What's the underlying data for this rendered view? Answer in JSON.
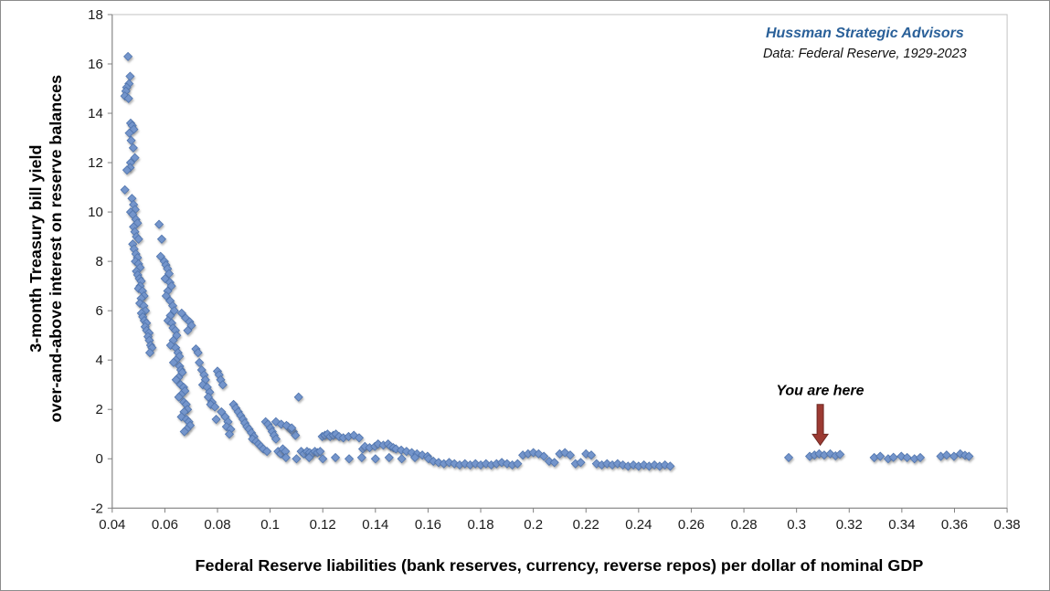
{
  "chart_data": {
    "type": "scatter",
    "title": "",
    "xlabel": "Federal Reserve liabilities (bank reserves, currency, reverse repos) per dollar of nominal GDP",
    "ylabel_line1": "3-month Treasury bill yield",
    "ylabel_line2": "over-and-above interest on reserve balances",
    "xlim": [
      0.04,
      0.38
    ],
    "ylim": [
      -2,
      18
    ],
    "x_tick_labels": [
      "0.04",
      "0.06",
      "0.08",
      "0.1",
      "0.12",
      "0.14",
      "0.16",
      "0.18",
      "0.2",
      "0.22",
      "0.24",
      "0.26",
      "0.28",
      "0.3",
      "0.32",
      "0.34",
      "0.36",
      "0.38"
    ],
    "y_ticks": [
      -2,
      0,
      2,
      4,
      6,
      8,
      10,
      12,
      14,
      16,
      18
    ],
    "grid": false,
    "legend": false,
    "marker": {
      "shape": "diamond",
      "color": "#7495CB",
      "edge": "#4F74AE",
      "size": 9
    },
    "annotation": {
      "text": "You are here",
      "x": 0.309,
      "label_y": 2.9,
      "arrow_from_y": 2.2,
      "arrow_to_y": 0.55,
      "arrow_color": "#9C3A32"
    },
    "source": {
      "line1": "Hussman Strategic Advisors",
      "line2": "Data: Federal Reserve, 1929-2023",
      "line1_color": "#2A6099"
    },
    "points": [
      [
        0.046,
        16.3
      ],
      [
        0.0468,
        15.5
      ],
      [
        0.0464,
        15.2
      ],
      [
        0.0455,
        15.05
      ],
      [
        0.0452,
        14.9
      ],
      [
        0.0448,
        14.7
      ],
      [
        0.0462,
        14.6
      ],
      [
        0.047,
        13.6
      ],
      [
        0.0476,
        13.5
      ],
      [
        0.0482,
        13.35
      ],
      [
        0.0465,
        13.2
      ],
      [
        0.0472,
        12.9
      ],
      [
        0.048,
        12.6
      ],
      [
        0.0486,
        12.2
      ],
      [
        0.047,
        12.0
      ],
      [
        0.0468,
        11.8
      ],
      [
        0.0456,
        11.7
      ],
      [
        0.0448,
        10.9
      ],
      [
        0.0475,
        10.55
      ],
      [
        0.0481,
        10.3
      ],
      [
        0.0487,
        10.1
      ],
      [
        0.047,
        10.0
      ],
      [
        0.0478,
        9.9
      ],
      [
        0.049,
        9.7
      ],
      [
        0.0496,
        9.55
      ],
      [
        0.0481,
        9.4
      ],
      [
        0.0486,
        9.2
      ],
      [
        0.0492,
        9.0
      ],
      [
        0.05,
        8.9
      ],
      [
        0.0478,
        8.7
      ],
      [
        0.0483,
        8.5
      ],
      [
        0.049,
        8.3
      ],
      [
        0.0496,
        8.15
      ],
      [
        0.0488,
        8.0
      ],
      [
        0.05,
        7.9
      ],
      [
        0.0506,
        7.75
      ],
      [
        0.0492,
        7.6
      ],
      [
        0.0497,
        7.45
      ],
      [
        0.0503,
        7.3
      ],
      [
        0.051,
        7.2
      ],
      [
        0.0506,
        7.0
      ],
      [
        0.05,
        6.9
      ],
      [
        0.0515,
        6.8
      ],
      [
        0.0521,
        6.6
      ],
      [
        0.051,
        6.5
      ],
      [
        0.0505,
        6.3
      ],
      [
        0.052,
        6.2
      ],
      [
        0.0526,
        6.0
      ],
      [
        0.0511,
        5.9
      ],
      [
        0.0516,
        5.75
      ],
      [
        0.0522,
        5.6
      ],
      [
        0.053,
        5.5
      ],
      [
        0.0525,
        5.35
      ],
      [
        0.0531,
        5.2
      ],
      [
        0.054,
        5.1
      ],
      [
        0.0536,
        4.95
      ],
      [
        0.0541,
        4.8
      ],
      [
        0.0546,
        4.6
      ],
      [
        0.0551,
        4.5
      ],
      [
        0.0543,
        4.3
      ],
      [
        0.0578,
        9.5
      ],
      [
        0.0588,
        8.9
      ],
      [
        0.0584,
        8.2
      ],
      [
        0.0598,
        8.0
      ],
      [
        0.0604,
        7.85
      ],
      [
        0.061,
        7.7
      ],
      [
        0.0616,
        7.5
      ],
      [
        0.0601,
        7.3
      ],
      [
        0.0619,
        7.15
      ],
      [
        0.0625,
        7.0
      ],
      [
        0.0611,
        6.8
      ],
      [
        0.0605,
        6.6
      ],
      [
        0.062,
        6.4
      ],
      [
        0.063,
        6.2
      ],
      [
        0.0636,
        6.0
      ],
      [
        0.0621,
        5.8
      ],
      [
        0.0612,
        5.6
      ],
      [
        0.0626,
        5.5
      ],
      [
        0.0631,
        5.3
      ],
      [
        0.064,
        5.2
      ],
      [
        0.0645,
        5.0
      ],
      [
        0.0632,
        4.8
      ],
      [
        0.0622,
        4.6
      ],
      [
        0.0641,
        4.5
      ],
      [
        0.065,
        4.3
      ],
      [
        0.0655,
        4.15
      ],
      [
        0.0642,
        4.0
      ],
      [
        0.0633,
        3.9
      ],
      [
        0.0656,
        3.75
      ],
      [
        0.0661,
        3.6
      ],
      [
        0.0666,
        3.5
      ],
      [
        0.0652,
        3.3
      ],
      [
        0.0643,
        3.2
      ],
      [
        0.066,
        3.0
      ],
      [
        0.0671,
        2.9
      ],
      [
        0.0676,
        2.75
      ],
      [
        0.0662,
        2.6
      ],
      [
        0.0653,
        2.5
      ],
      [
        0.0672,
        2.3
      ],
      [
        0.0681,
        2.2
      ],
      [
        0.0686,
        2.0
      ],
      [
        0.0673,
        1.9
      ],
      [
        0.0663,
        1.7
      ],
      [
        0.0682,
        1.6
      ],
      [
        0.0691,
        1.5
      ],
      [
        0.0696,
        1.35
      ],
      [
        0.0683,
        1.2
      ],
      [
        0.0674,
        1.1
      ],
      [
        0.0664,
        5.9
      ],
      [
        0.0679,
        5.7
      ],
      [
        0.0694,
        5.55
      ],
      [
        0.0701,
        5.4
      ],
      [
        0.0687,
        5.2
      ],
      [
        0.0718,
        4.45
      ],
      [
        0.0726,
        4.3
      ],
      [
        0.0731,
        3.9
      ],
      [
        0.074,
        3.6
      ],
      [
        0.0749,
        3.4
      ],
      [
        0.0754,
        3.2
      ],
      [
        0.0744,
        3.0
      ],
      [
        0.0761,
        2.9
      ],
      [
        0.077,
        2.7
      ],
      [
        0.0765,
        2.5
      ],
      [
        0.0779,
        2.3
      ],
      [
        0.0774,
        2.2
      ],
      [
        0.079,
        2.1
      ],
      [
        0.08,
        3.55
      ],
      [
        0.0806,
        3.4
      ],
      [
        0.0812,
        3.2
      ],
      [
        0.082,
        3.0
      ],
      [
        0.0815,
        1.9
      ],
      [
        0.0829,
        1.7
      ],
      [
        0.084,
        1.5
      ],
      [
        0.0834,
        1.3
      ],
      [
        0.085,
        1.2
      ],
      [
        0.0845,
        1.0
      ],
      [
        0.0795,
        1.6
      ],
      [
        0.0861,
        2.2
      ],
      [
        0.087,
        2.05
      ],
      [
        0.0879,
        1.9
      ],
      [
        0.0888,
        1.75
      ],
      [
        0.0897,
        1.6
      ],
      [
        0.0904,
        1.45
      ],
      [
        0.0912,
        1.3
      ],
      [
        0.092,
        1.2
      ],
      [
        0.0929,
        1.05
      ],
      [
        0.0938,
        0.9
      ],
      [
        0.0933,
        0.8
      ],
      [
        0.0947,
        0.7
      ],
      [
        0.0956,
        0.6
      ],
      [
        0.0965,
        0.5
      ],
      [
        0.0974,
        0.4
      ],
      [
        0.0988,
        0.3
      ],
      [
        0.0983,
        1.5
      ],
      [
        0.0992,
        1.4
      ],
      [
        0.1001,
        1.25
      ],
      [
        0.1008,
        1.1
      ],
      [
        0.1015,
        0.95
      ],
      [
        0.1022,
        0.8
      ],
      [
        0.103,
        0.3
      ],
      [
        0.104,
        0.2
      ],
      [
        0.1048,
        0.4
      ],
      [
        0.1058,
        0.3
      ],
      [
        0.1068,
        1.3
      ],
      [
        0.1077,
        1.2
      ],
      [
        0.1088,
        1.1
      ],
      [
        0.1096,
        0.95
      ],
      [
        0.1108,
        2.5
      ],
      [
        0.1118,
        0.3
      ],
      [
        0.1128,
        0.2
      ],
      [
        0.114,
        0.3
      ],
      [
        0.115,
        0.25
      ],
      [
        0.116,
        0.2
      ],
      [
        0.117,
        0.3
      ],
      [
        0.118,
        0.25
      ],
      [
        0.119,
        0.3
      ],
      [
        0.1198,
        0.9
      ],
      [
        0.1022,
        1.5
      ],
      [
        0.1042,
        1.4
      ],
      [
        0.1062,
        1.35
      ],
      [
        0.1082,
        1.25
      ],
      [
        0.1208,
        0.95
      ],
      [
        0.1218,
        1.0
      ],
      [
        0.1228,
        0.9
      ],
      [
        0.124,
        0.95
      ],
      [
        0.125,
        1.0
      ],
      [
        0.1262,
        0.9
      ],
      [
        0.1278,
        0.85
      ],
      [
        0.1298,
        0.9
      ],
      [
        0.1318,
        0.95
      ],
      [
        0.1338,
        0.85
      ],
      [
        0.1352,
        0.4
      ],
      [
        0.136,
        0.5
      ],
      [
        0.1378,
        0.45
      ],
      [
        0.1398,
        0.5
      ],
      [
        0.141,
        0.6
      ],
      [
        0.143,
        0.55
      ],
      [
        0.1448,
        0.6
      ],
      [
        0.1458,
        0.5
      ],
      [
        0.1468,
        0.45
      ],
      [
        0.1478,
        0.4
      ],
      [
        0.1498,
        0.35
      ],
      [
        0.1518,
        0.3
      ],
      [
        0.1538,
        0.25
      ],
      [
        0.1558,
        0.2
      ],
      [
        0.1578,
        0.15
      ],
      [
        0.1598,
        0.1
      ],
      [
        0.106,
        0.05
      ],
      [
        0.11,
        0.0
      ],
      [
        0.1148,
        0.05
      ],
      [
        0.12,
        0.0
      ],
      [
        0.1248,
        0.05
      ],
      [
        0.13,
        0.0
      ],
      [
        0.1348,
        0.05
      ],
      [
        0.14,
        0.0
      ],
      [
        0.1452,
        0.05
      ],
      [
        0.15,
        0.0
      ],
      [
        0.155,
        0.05
      ],
      [
        0.1602,
        0.0
      ],
      [
        0.162,
        -0.1
      ],
      [
        0.164,
        -0.15
      ],
      [
        0.166,
        -0.2
      ],
      [
        0.168,
        -0.15
      ],
      [
        0.17,
        -0.2
      ],
      [
        0.172,
        -0.25
      ],
      [
        0.174,
        -0.2
      ],
      [
        0.176,
        -0.25
      ],
      [
        0.178,
        -0.2
      ],
      [
        0.18,
        -0.25
      ],
      [
        0.182,
        -0.2
      ],
      [
        0.184,
        -0.25
      ],
      [
        0.186,
        -0.2
      ],
      [
        0.188,
        -0.15
      ],
      [
        0.19,
        -0.2
      ],
      [
        0.192,
        -0.25
      ],
      [
        0.194,
        -0.2
      ],
      [
        0.196,
        0.15
      ],
      [
        0.198,
        0.2
      ],
      [
        0.2,
        0.25
      ],
      [
        0.202,
        0.2
      ],
      [
        0.204,
        0.1
      ],
      [
        0.206,
        -0.1
      ],
      [
        0.208,
        -0.15
      ],
      [
        0.21,
        0.2
      ],
      [
        0.212,
        0.25
      ],
      [
        0.214,
        0.15
      ],
      [
        0.216,
        -0.2
      ],
      [
        0.218,
        -0.15
      ],
      [
        0.22,
        0.2
      ],
      [
        0.222,
        0.15
      ],
      [
        0.224,
        -0.2
      ],
      [
        0.226,
        -0.25
      ],
      [
        0.228,
        -0.2
      ],
      [
        0.23,
        -0.25
      ],
      [
        0.232,
        -0.2
      ],
      [
        0.234,
        -0.25
      ],
      [
        0.236,
        -0.3
      ],
      [
        0.238,
        -0.25
      ],
      [
        0.24,
        -0.3
      ],
      [
        0.242,
        -0.25
      ],
      [
        0.244,
        -0.3
      ],
      [
        0.246,
        -0.25
      ],
      [
        0.248,
        -0.3
      ],
      [
        0.25,
        -0.25
      ],
      [
        0.252,
        -0.3
      ],
      [
        0.297,
        0.05
      ],
      [
        0.305,
        0.1
      ],
      [
        0.3068,
        0.15
      ],
      [
        0.3086,
        0.2
      ],
      [
        0.3105,
        0.15
      ],
      [
        0.3128,
        0.2
      ],
      [
        0.3148,
        0.12
      ],
      [
        0.3165,
        0.18
      ],
      [
        0.3295,
        0.05
      ],
      [
        0.3318,
        0.1
      ],
      [
        0.3348,
        0.0
      ],
      [
        0.3368,
        0.06
      ],
      [
        0.3398,
        0.1
      ],
      [
        0.342,
        0.05
      ],
      [
        0.3448,
        0.0
      ],
      [
        0.347,
        0.05
      ],
      [
        0.3548,
        0.1
      ],
      [
        0.357,
        0.15
      ],
      [
        0.3598,
        0.1
      ],
      [
        0.3622,
        0.2
      ],
      [
        0.364,
        0.14
      ],
      [
        0.3655,
        0.1
      ]
    ]
  }
}
